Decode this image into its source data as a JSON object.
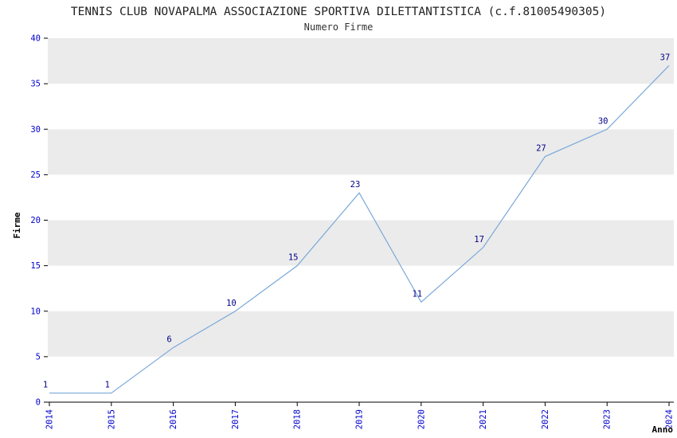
{
  "chart_data": {
    "type": "line",
    "title": "TENNIS CLUB NOVAPALMA ASSOCIAZIONE SPORTIVA DILETTANTISTICA (c.f.81005490305)",
    "subtitle": "Numero Firme",
    "xlabel": "Anno",
    "ylabel": "Firme",
    "categories": [
      "2014",
      "2015",
      "2016",
      "2017",
      "2018",
      "2019",
      "2020",
      "2021",
      "2022",
      "2023",
      "2024"
    ],
    "values": [
      1,
      1,
      6,
      10,
      15,
      23,
      11,
      17,
      27,
      30,
      37
    ],
    "ylim": [
      0,
      40
    ],
    "ytick_step": 5,
    "grid": "alternating-horizontal-bands",
    "legend": "none",
    "data_labels_visible": true,
    "colors": {
      "line": "#79a8d9",
      "band": "#ebebeb",
      "band_alt": "#ffffff",
      "tick_label": "#0000cc",
      "data_label": "#00008b",
      "title": "#222222",
      "axis": "#000000"
    }
  }
}
